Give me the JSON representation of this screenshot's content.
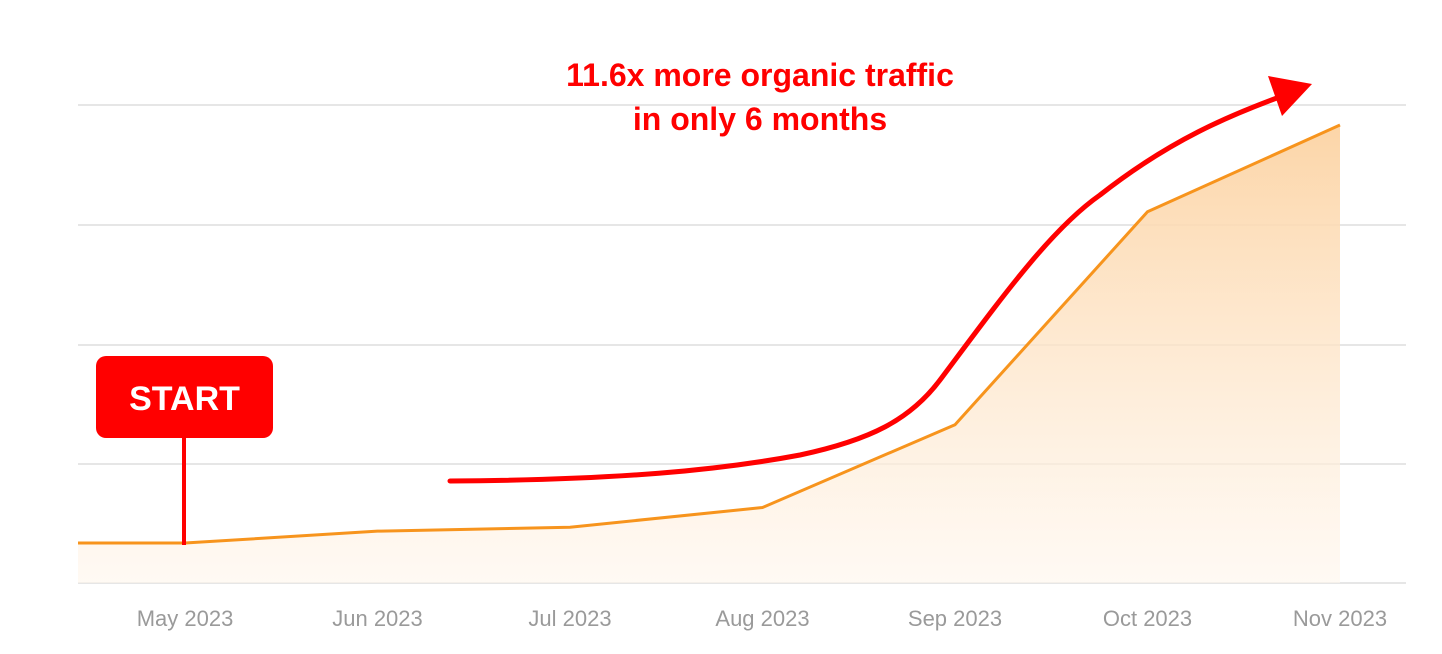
{
  "chart_data": {
    "type": "area",
    "categories": [
      "May 2023",
      "Jun 2023",
      "Jul 2023",
      "Aug 2023",
      "Sep 2023",
      "Oct 2023",
      "Nov 2023"
    ],
    "values": [
      1.0,
      1.3,
      1.4,
      1.9,
      4.0,
      9.4,
      11.6
    ],
    "ylim": [
      0,
      12
    ],
    "grid": true,
    "legend": "none",
    "colors": {
      "line": "#f7941d",
      "fill": "#fcd8ad",
      "annotation": "#ff0000",
      "grid": "#e6e6e6",
      "tick": "#9a9a9a"
    },
    "annotations": {
      "headline_line1": "11.6x more organic traffic",
      "headline_line2": "in only 6 months",
      "start_label": "START"
    }
  }
}
